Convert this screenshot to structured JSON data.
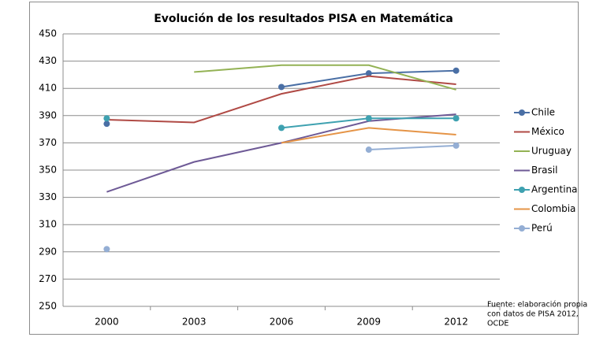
{
  "chart_data": {
    "type": "line",
    "title": "Evolución de los resultados PISA en Matemática",
    "categories": [
      "2000",
      "2003",
      "2006",
      "2009",
      "2012"
    ],
    "series": [
      {
        "name": "Chile",
        "color": "#4a6fa5",
        "markers": true,
        "values": [
          384,
          null,
          411,
          421,
          423
        ]
      },
      {
        "name": "México",
        "color": "#b04a45",
        "markers": false,
        "values": [
          387,
          385,
          406,
          419,
          413
        ]
      },
      {
        "name": "Uruguay",
        "color": "#93b254",
        "markers": false,
        "values": [
          null,
          422,
          427,
          427,
          409
        ]
      },
      {
        "name": "Brasil",
        "color": "#6e5a96",
        "markers": false,
        "values": [
          334,
          356,
          370,
          386,
          391
        ]
      },
      {
        "name": "Argentina",
        "color": "#3ea1b0",
        "markers": true,
        "values": [
          388,
          null,
          381,
          388,
          388
        ]
      },
      {
        "name": "Colombia",
        "color": "#e59447",
        "markers": false,
        "values": [
          null,
          null,
          370,
          381,
          376
        ]
      },
      {
        "name": "Perú",
        "color": "#94aed4",
        "markers": true,
        "values": [
          292,
          null,
          null,
          365,
          368
        ]
      }
    ],
    "ylim": [
      250,
      450
    ],
    "yticks": [
      250,
      270,
      290,
      310,
      330,
      350,
      370,
      390,
      410,
      430,
      450
    ],
    "grid": true,
    "legend": "right",
    "note": [
      "Fuente: elaboración propia",
      "con datos de PISA 2012,",
      "OCDE"
    ]
  }
}
